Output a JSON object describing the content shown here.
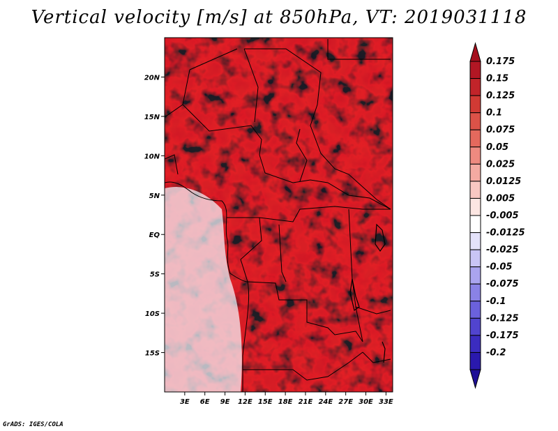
{
  "title": "Vertical velocity [m/s] at 850hPa, VT: 2019031118",
  "footer": "GrADS: IGES/COLA",
  "map": {
    "lon_range": [
      0,
      34
    ],
    "lat_range": [
      -20,
      25
    ],
    "lat_ticks": [
      {
        "value": 20,
        "label": "20N"
      },
      {
        "value": 15,
        "label": "15N"
      },
      {
        "value": 10,
        "label": "10N"
      },
      {
        "value": 5,
        "label": "5N"
      },
      {
        "value": 0,
        "label": "EQ"
      },
      {
        "value": -5,
        "label": "5S"
      },
      {
        "value": -10,
        "label": "10S"
      },
      {
        "value": -15,
        "label": "15S"
      }
    ],
    "lon_ticks": [
      {
        "value": 3,
        "label": "3E"
      },
      {
        "value": 6,
        "label": "6E"
      },
      {
        "value": 9,
        "label": "9E"
      },
      {
        "value": 12,
        "label": "12E"
      },
      {
        "value": 15,
        "label": "15E"
      },
      {
        "value": 18,
        "label": "18E"
      },
      {
        "value": 21,
        "label": "21E"
      },
      {
        "value": 24,
        "label": "24E"
      },
      {
        "value": 27,
        "label": "27E"
      },
      {
        "value": 30,
        "label": "30E"
      },
      {
        "value": 33,
        "label": "33E"
      }
    ]
  },
  "colorbar": {
    "top_color": "#a50f1d",
    "bottom_color": "#1e0f96",
    "levels": [
      {
        "label": "0.175",
        "color": "#b21724"
      },
      {
        "label": "0.15",
        "color": "#c1242a"
      },
      {
        "label": "0.125",
        "color": "#d13a34"
      },
      {
        "label": "0.1",
        "color": "#dc5248"
      },
      {
        "label": "0.075",
        "color": "#e4695d"
      },
      {
        "label": "0.05",
        "color": "#ee8a80"
      },
      {
        "label": "0.025",
        "color": "#f4aaa2"
      },
      {
        "label": "0.0125",
        "color": "#f8c8c2"
      },
      {
        "label": "0.005",
        "color": "#fce6e2"
      },
      {
        "label": "-0.005",
        "color": "#ffffff"
      },
      {
        "label": "-0.0125",
        "color": "#e4e2fa"
      },
      {
        "label": "-0.025",
        "color": "#c9c5f5"
      },
      {
        "label": "-0.05",
        "color": "#aaa4ef"
      },
      {
        "label": "-0.075",
        "color": "#8a82e6"
      },
      {
        "label": "-0.1",
        "color": "#6b61dc"
      },
      {
        "label": "-0.125",
        "color": "#5144cf"
      },
      {
        "label": "-0.175",
        "color": "#3b2cc0"
      },
      {
        "label": "-0.2",
        "color": "#2a19ad"
      }
    ]
  }
}
